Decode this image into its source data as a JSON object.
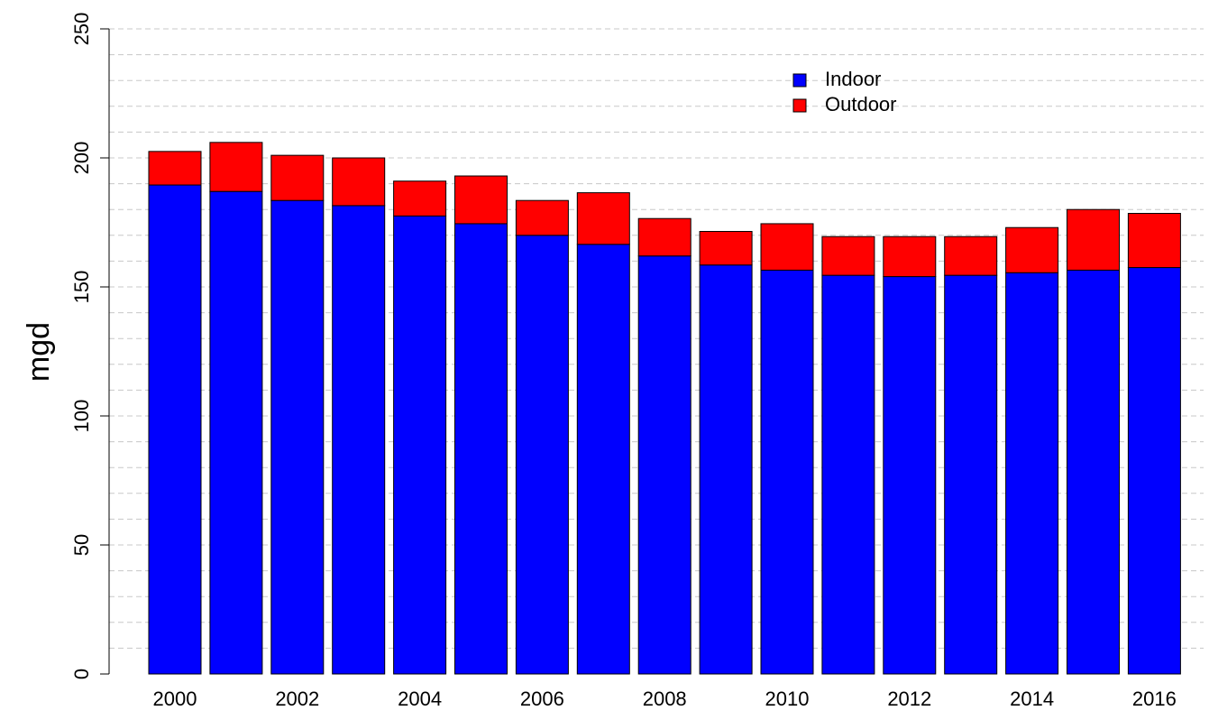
{
  "chart_data": {
    "type": "bar",
    "stacked": true,
    "title": "",
    "xlabel": "",
    "ylabel": "mgd",
    "ylim": [
      0,
      250
    ],
    "y_ticks": [
      "0",
      "50",
      "100",
      "150",
      "200",
      "250"
    ],
    "x_tick_labels": [
      "2000",
      "2002",
      "2004",
      "2006",
      "2008",
      "2010",
      "2012",
      "2014",
      "2016"
    ],
    "grid": true,
    "legend_position": "top-right",
    "categories": [
      "2000",
      "2001",
      "2002",
      "2003",
      "2004",
      "2005",
      "2006",
      "2007",
      "2008",
      "2009",
      "2010",
      "2011",
      "2012",
      "2013",
      "2014",
      "2015",
      "2016"
    ],
    "series": [
      {
        "name": "Indoor",
        "color": "#0000ff",
        "values": [
          189.5,
          187,
          183.5,
          181.5,
          177.5,
          174.5,
          170,
          166.5,
          162,
          158.5,
          156.5,
          154.5,
          154,
          154.5,
          155.5,
          156.5,
          157.5
        ]
      },
      {
        "name": "Outdoor",
        "color": "#ff0000",
        "values": [
          13,
          19,
          17.5,
          18.5,
          13.5,
          18.5,
          13.5,
          20,
          14.5,
          13,
          18,
          15,
          15.5,
          15,
          17.5,
          23.5,
          21
        ]
      }
    ]
  }
}
